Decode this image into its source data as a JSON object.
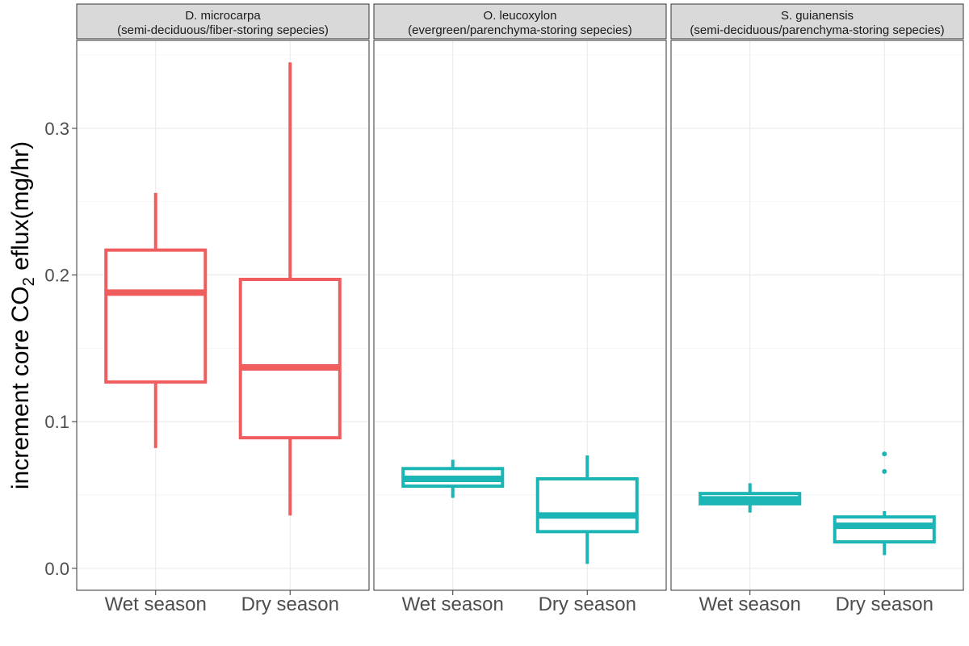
{
  "chart_data": {
    "type": "boxplot",
    "ylabel": {
      "prefix": "increment core CO",
      "subscript": "2",
      "suffix": " eflux",
      "unit": "(mg/hr)"
    },
    "ylim": [
      -0.015,
      0.36
    ],
    "yticks": [
      {
        "value": 0.0,
        "label": "0.0"
      },
      {
        "value": 0.1,
        "label": "0.1"
      },
      {
        "value": 0.2,
        "label": "0.2"
      },
      {
        "value": 0.3,
        "label": "0.3"
      }
    ],
    "grid": true,
    "colors": {
      "D. microcarpa": "#F05D5E",
      "other": "#1CB5B5"
    },
    "panels": [
      {
        "title": "D. microcarpa",
        "subtitle": "(semi-deciduous/fiber-storing sepecies)",
        "color": "#F05D5E",
        "categories": [
          "Wet season",
          "Dry season"
        ],
        "boxes": [
          {
            "category": "Wet season",
            "min": 0.082,
            "q1": 0.127,
            "median": 0.188,
            "q3": 0.217,
            "max": 0.256,
            "outliers": []
          },
          {
            "category": "Dry season",
            "min": 0.036,
            "q1": 0.089,
            "median": 0.137,
            "q3": 0.197,
            "max": 0.345,
            "outliers": []
          }
        ]
      },
      {
        "title": "O. leucoxylon",
        "subtitle": "(evergreen/parenchyma-storing sepecies)",
        "color": "#1CB5B5",
        "categories": [
          "Wet season",
          "Dry season"
        ],
        "boxes": [
          {
            "category": "Wet season",
            "min": 0.048,
            "q1": 0.056,
            "median": 0.061,
            "q3": 0.068,
            "max": 0.074,
            "outliers": []
          },
          {
            "category": "Dry season",
            "min": 0.003,
            "q1": 0.025,
            "median": 0.036,
            "q3": 0.061,
            "max": 0.077,
            "outliers": []
          }
        ]
      },
      {
        "title": "S. guianensis",
        "subtitle": "(semi-deciduous/parenchyma-storing sepecies)",
        "color": "#1CB5B5",
        "categories": [
          "Wet season",
          "Dry season"
        ],
        "boxes": [
          {
            "category": "Wet season",
            "min": 0.038,
            "q1": 0.044,
            "median": 0.047,
            "q3": 0.051,
            "max": 0.058,
            "outliers": []
          },
          {
            "category": "Dry season",
            "min": 0.009,
            "q1": 0.018,
            "median": 0.029,
            "q3": 0.035,
            "max": 0.039,
            "outliers": [
              0.066,
              0.078
            ]
          }
        ]
      }
    ]
  }
}
